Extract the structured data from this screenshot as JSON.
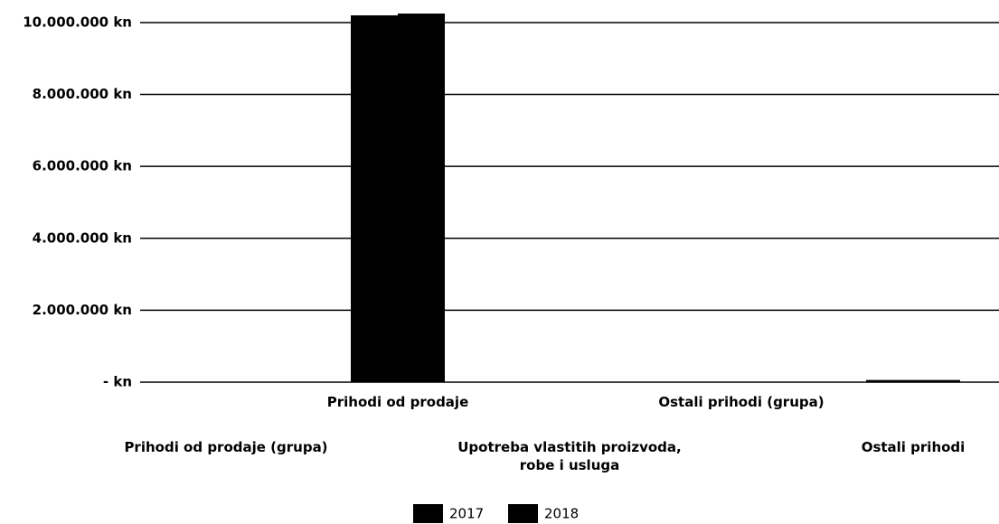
{
  "chart_data": {
    "type": "bar",
    "categories": [
      "Prihodi od prodaje (grupa)",
      "Prihodi od prodaje",
      "Upotreba vlastitih proizvoda, robe i usluga",
      "Ostali prihodi (grupa)",
      "Ostali prihodi"
    ],
    "series": [
      {
        "name": "2017",
        "color": "#000000",
        "values": [
          0,
          10200000,
          0,
          0,
          60000
        ]
      },
      {
        "name": "2018",
        "color": "#000000",
        "values": [
          0,
          10250000,
          0,
          0,
          60000
        ]
      }
    ],
    "ylim": [
      0,
      10250000
    ],
    "yticks": [
      {
        "value": 0,
        "label": "- kn"
      },
      {
        "value": 2000000,
        "label": "2.000.000 kn"
      },
      {
        "value": 4000000,
        "label": "4.000.000 kn"
      },
      {
        "value": 6000000,
        "label": "6.000.000 kn"
      },
      {
        "value": 8000000,
        "label": "8.000.000 kn"
      },
      {
        "value": 10000000,
        "label": "10.000.000 kn"
      }
    ],
    "grid": true,
    "legend": "bottom"
  }
}
